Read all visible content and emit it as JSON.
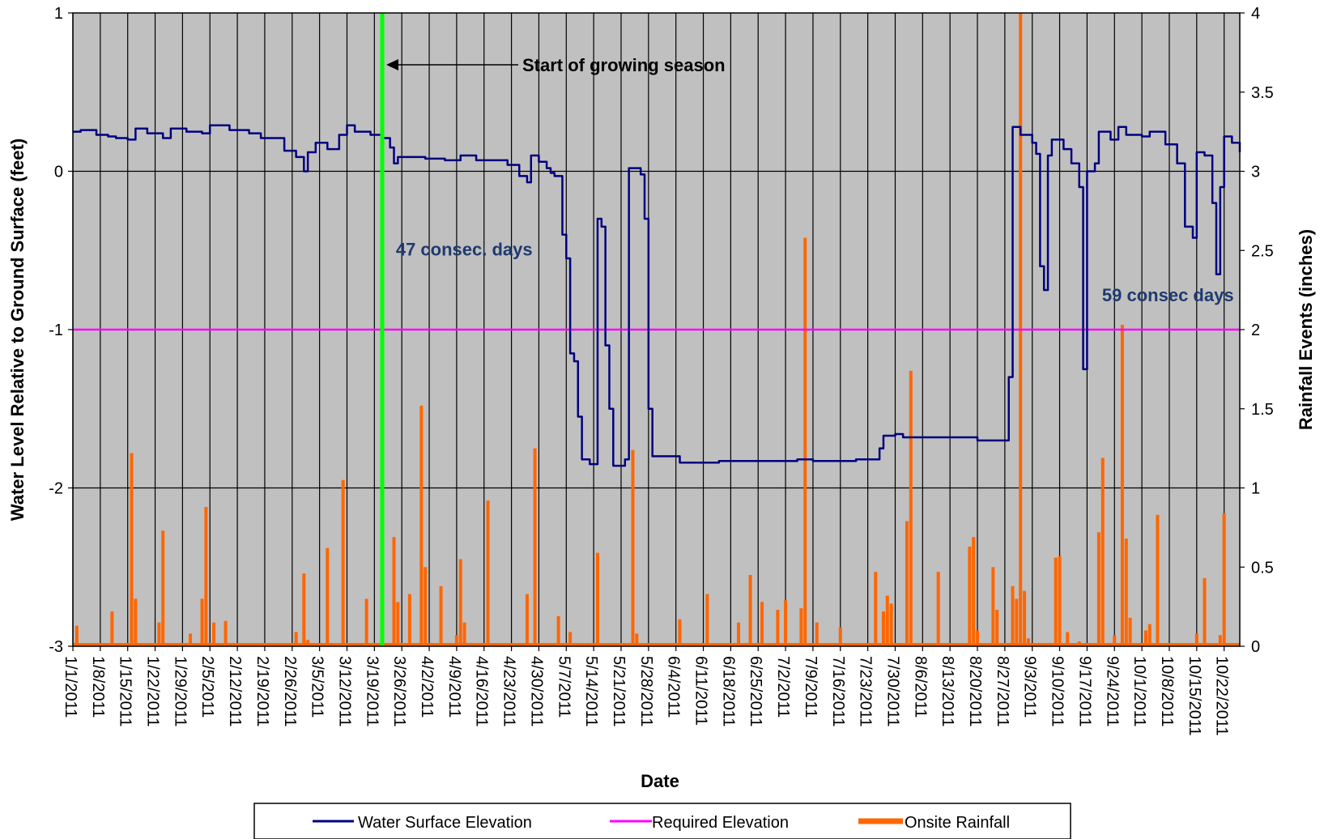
{
  "chart_data": {
    "type": "line",
    "xlabel": "Date",
    "ylabel": "Water Level Relative to Ground Surface (feet)",
    "y2label": "Rainfall Events (inches)",
    "ylim": [
      -3,
      1
    ],
    "y2lim": [
      0,
      4
    ],
    "y_ticks": [
      "-3",
      "-2",
      "-1",
      "0",
      "1"
    ],
    "y2_ticks": [
      "0",
      "0.5",
      "1",
      "1.5",
      "2",
      "2.5",
      "3",
      "3.5",
      "4"
    ],
    "x_start": "1/1/2011",
    "x_end": "10/26/2011",
    "x_tick_labels": [
      "1/1/2011",
      "1/8/2011",
      "1/15/2011",
      "1/22/2011",
      "1/29/2011",
      "2/5/2011",
      "2/12/2011",
      "2/19/2011",
      "2/26/2011",
      "3/5/2011",
      "3/12/2011",
      "3/19/2011",
      "3/26/2011",
      "4/2/2011",
      "4/9/2011",
      "4/16/2011",
      "4/23/2011",
      "4/30/2011",
      "5/7/2011",
      "5/14/2011",
      "5/21/2011",
      "5/28/2011",
      "6/4/2011",
      "6/11/2011",
      "6/18/2011",
      "6/25/2011",
      "7/2/2011",
      "7/9/2011",
      "7/16/2011",
      "7/23/2011",
      "7/30/2011",
      "8/6/2011",
      "8/13/2011",
      "8/20/2011",
      "8/27/2011",
      "9/3/2011",
      "9/10/2011",
      "9/17/2011",
      "9/24/2011",
      "10/1/2011",
      "10/8/2011",
      "10/15/2011",
      "10/22/2011"
    ],
    "grid": true,
    "legend_position": "bottom",
    "plot_background": "#c0c0c0",
    "annotations": [
      {
        "text": "Start of growing season",
        "date": "3/21/2011"
      },
      {
        "text": "47 consec. days",
        "date": "3/22/2011",
        "y": -0.49
      },
      {
        "text": "59 consec days",
        "date": "9/20/2011",
        "y": -0.78
      }
    ],
    "series": [
      {
        "name": "Water Surface Elevation",
        "color": "#000080",
        "axis": "left",
        "points": [
          [
            "1/1/2011",
            0.25
          ],
          [
            "1/3/2011",
            0.26
          ],
          [
            "1/7/2011",
            0.23
          ],
          [
            "1/10/2011",
            0.22
          ],
          [
            "1/12/2011",
            0.21
          ],
          [
            "1/15/2011",
            0.2
          ],
          [
            "1/17/2011",
            0.27
          ],
          [
            "1/20/2011",
            0.24
          ],
          [
            "1/24/2011",
            0.21
          ],
          [
            "1/26/2011",
            0.27
          ],
          [
            "1/30/2011",
            0.25
          ],
          [
            "2/3/2011",
            0.24
          ],
          [
            "2/5/2011",
            0.29
          ],
          [
            "2/10/2011",
            0.26
          ],
          [
            "2/15/2011",
            0.24
          ],
          [
            "2/18/2011",
            0.21
          ],
          [
            "2/20/2011",
            0.21
          ],
          [
            "2/24/2011",
            0.13
          ],
          [
            "2/27/2011",
            0.09
          ],
          [
            "3/1/2011",
            0.0
          ],
          [
            "3/2/2011",
            0.12
          ],
          [
            "3/4/2011",
            0.18
          ],
          [
            "3/7/2011",
            0.14
          ],
          [
            "3/10/2011",
            0.23
          ],
          [
            "3/12/2011",
            0.29
          ],
          [
            "3/14/2011",
            0.25
          ],
          [
            "3/18/2011",
            0.23
          ],
          [
            "3/21/2011",
            0.21
          ],
          [
            "3/23/2011",
            0.15
          ],
          [
            "3/24/2011",
            0.05
          ],
          [
            "3/25/2011",
            0.09
          ],
          [
            "4/1/2011",
            0.08
          ],
          [
            "4/6/2011",
            0.07
          ],
          [
            "4/10/2011",
            0.1
          ],
          [
            "4/14/2011",
            0.07
          ],
          [
            "4/18/2011",
            0.07
          ],
          [
            "4/22/2011",
            0.04
          ],
          [
            "4/25/2011",
            -0.03
          ],
          [
            "4/27/2011",
            -0.07
          ],
          [
            "4/28/2011",
            0.1
          ],
          [
            "4/30/2011",
            0.06
          ],
          [
            "5/2/2011",
            0.02
          ],
          [
            "5/3/2011",
            -0.01
          ],
          [
            "5/4/2011",
            -0.03
          ],
          [
            "5/6/2011",
            -0.4
          ],
          [
            "5/7/2011",
            -0.55
          ],
          [
            "5/8/2011",
            -1.15
          ],
          [
            "5/9/2011",
            -1.2
          ],
          [
            "5/10/2011",
            -1.55
          ],
          [
            "5/11/2011",
            -1.82
          ],
          [
            "5/13/2011",
            -1.85
          ],
          [
            "5/14/2011",
            -1.85
          ],
          [
            "5/15/2011",
            -0.3
          ],
          [
            "5/16/2011",
            -0.35
          ],
          [
            "5/17/2011",
            -1.1
          ],
          [
            "5/18/2011",
            -1.5
          ],
          [
            "5/19/2011",
            -1.86
          ],
          [
            "5/21/2011",
            -1.86
          ],
          [
            "5/22/2011",
            -1.82
          ],
          [
            "5/23/2011",
            0.02
          ],
          [
            "5/25/2011",
            0.02
          ],
          [
            "5/26/2011",
            -0.02
          ],
          [
            "5/27/2011",
            -0.3
          ],
          [
            "5/28/2011",
            -1.5
          ],
          [
            "5/29/2011",
            -1.8
          ],
          [
            "6/5/2011",
            -1.84
          ],
          [
            "6/15/2011",
            -1.83
          ],
          [
            "6/25/2011",
            -1.83
          ],
          [
            "7/5/2011",
            -1.82
          ],
          [
            "7/9/2011",
            -1.83
          ],
          [
            "7/20/2011",
            -1.82
          ],
          [
            "7/25/2011",
            -1.82
          ],
          [
            "7/26/2011",
            -1.75
          ],
          [
            "7/27/2011",
            -1.67
          ],
          [
            "7/30/2011",
            -1.66
          ],
          [
            "8/1/2011",
            -1.68
          ],
          [
            "8/10/2011",
            -1.68
          ],
          [
            "8/20/2011",
            -1.7
          ],
          [
            "8/27/2011",
            -1.7
          ],
          [
            "8/28/2011",
            -1.3
          ],
          [
            "8/29/2011",
            0.28
          ],
          [
            "8/31/2011",
            0.23
          ],
          [
            "9/3/2011",
            0.18
          ],
          [
            "9/4/2011",
            0.11
          ],
          [
            "9/5/2011",
            -0.6
          ],
          [
            "9/6/2011",
            -0.75
          ],
          [
            "9/7/2011",
            0.1
          ],
          [
            "9/8/2011",
            0.2
          ],
          [
            "9/11/2011",
            0.14
          ],
          [
            "9/13/2011",
            0.05
          ],
          [
            "9/15/2011",
            -0.1
          ],
          [
            "9/16/2011",
            -1.25
          ],
          [
            "9/17/2011",
            0.0
          ],
          [
            "9/19/2011",
            0.05
          ],
          [
            "9/20/2011",
            0.25
          ],
          [
            "9/23/2011",
            0.2
          ],
          [
            "9/25/2011",
            0.28
          ],
          [
            "9/27/2011",
            0.23
          ],
          [
            "10/1/2011",
            0.22
          ],
          [
            "10/3/2011",
            0.25
          ],
          [
            "10/7/2011",
            0.17
          ],
          [
            "10/10/2011",
            0.05
          ],
          [
            "10/12/2011",
            -0.35
          ],
          [
            "10/14/2011",
            -0.42
          ],
          [
            "10/15/2011",
            0.12
          ],
          [
            "10/17/2011",
            0.1
          ],
          [
            "10/19/2011",
            -0.2
          ],
          [
            "10/20/2011",
            -0.65
          ],
          [
            "10/21/2011",
            -0.1
          ],
          [
            "10/22/2011",
            0.22
          ],
          [
            "10/24/2011",
            0.18
          ],
          [
            "10/26/2011",
            0.12
          ]
        ]
      },
      {
        "name": "Required Elevation",
        "color": "#ff00ff",
        "axis": "left",
        "points": [
          [
            "1/1/2011",
            -1
          ],
          [
            "10/26/2011",
            -1
          ]
        ]
      },
      {
        "name": "Onsite Rainfall",
        "color": "#ff6600",
        "axis": "right",
        "points": [
          [
            "1/2/2011",
            0.13
          ],
          [
            "1/5/2011",
            0.02
          ],
          [
            "1/11/2011",
            0.22
          ],
          [
            "1/16/2011",
            1.22
          ],
          [
            "1/17/2011",
            0.3
          ],
          [
            "1/23/2011",
            0.15
          ],
          [
            "1/24/2011",
            0.73
          ],
          [
            "1/31/2011",
            0.08
          ],
          [
            "2/3/2011",
            0.3
          ],
          [
            "2/4/2011",
            0.88
          ],
          [
            "2/6/2011",
            0.15
          ],
          [
            "2/9/2011",
            0.16
          ],
          [
            "2/27/2011",
            0.09
          ],
          [
            "3/1/2011",
            0.46
          ],
          [
            "3/2/2011",
            0.04
          ],
          [
            "3/7/2011",
            0.62
          ],
          [
            "3/11/2011",
            1.05
          ],
          [
            "3/17/2011",
            0.3
          ],
          [
            "3/24/2011",
            0.69
          ],
          [
            "3/25/2011",
            0.28
          ],
          [
            "3/28/2011",
            0.33
          ],
          [
            "3/31/2011",
            1.52
          ],
          [
            "4/1/2011",
            0.5
          ],
          [
            "4/5/2011",
            0.38
          ],
          [
            "4/9/2011",
            0.07
          ],
          [
            "4/10/2011",
            0.55
          ],
          [
            "4/11/2011",
            0.15
          ],
          [
            "4/17/2011",
            0.92
          ],
          [
            "4/21/2011",
            0.02
          ],
          [
            "4/27/2011",
            0.33
          ],
          [
            "4/29/2011",
            1.25
          ],
          [
            "5/5/2011",
            0.19
          ],
          [
            "5/8/2011",
            0.09
          ],
          [
            "5/15/2011",
            0.59
          ],
          [
            "5/20/2011",
            0.02
          ],
          [
            "5/24/2011",
            1.24
          ],
          [
            "5/25/2011",
            0.08
          ],
          [
            "6/5/2011",
            0.17
          ],
          [
            "6/12/2011",
            0.33
          ],
          [
            "6/20/2011",
            0.15
          ],
          [
            "6/23/2011",
            0.45
          ],
          [
            "6/26/2011",
            0.28
          ],
          [
            "6/30/2011",
            0.23
          ],
          [
            "7/2/2011",
            0.29
          ],
          [
            "7/6/2011",
            0.24
          ],
          [
            "7/7/2011",
            2.58
          ],
          [
            "7/10/2011",
            0.15
          ],
          [
            "7/16/2011",
            0.12
          ],
          [
            "7/25/2011",
            0.47
          ],
          [
            "7/27/2011",
            0.22
          ],
          [
            "7/28/2011",
            0.32
          ],
          [
            "7/29/2011",
            0.27
          ],
          [
            "8/2/2011",
            0.79
          ],
          [
            "8/3/2011",
            1.74
          ],
          [
            "8/10/2011",
            0.47
          ],
          [
            "8/18/2011",
            0.63
          ],
          [
            "8/19/2011",
            0.69
          ],
          [
            "8/20/2011",
            0.1
          ],
          [
            "8/24/2011",
            0.5
          ],
          [
            "8/25/2011",
            0.23
          ],
          [
            "8/29/2011",
            0.38
          ],
          [
            "8/30/2011",
            0.3
          ],
          [
            "8/31/2011",
            4.0
          ],
          [
            "9/1/2011",
            0.35
          ],
          [
            "9/2/2011",
            0.05
          ],
          [
            "9/9/2011",
            0.56
          ],
          [
            "9/10/2011",
            0.57
          ],
          [
            "9/12/2011",
            0.09
          ],
          [
            "9/15/2011",
            0.03
          ],
          [
            "9/20/2011",
            0.72
          ],
          [
            "9/21/2011",
            1.19
          ],
          [
            "9/24/2011",
            0.07
          ],
          [
            "9/26/2011",
            2.03
          ],
          [
            "9/27/2011",
            0.68
          ],
          [
            "9/28/2011",
            0.18
          ],
          [
            "10/2/2011",
            0.1
          ],
          [
            "10/3/2011",
            0.14
          ],
          [
            "10/5/2011",
            0.83
          ],
          [
            "10/15/2011",
            0.08
          ],
          [
            "10/17/2011",
            0.43
          ],
          [
            "10/21/2011",
            0.07
          ],
          [
            "10/22/2011",
            0.84
          ],
          [
            "10/25/2011",
            0.02
          ]
        ]
      }
    ]
  }
}
